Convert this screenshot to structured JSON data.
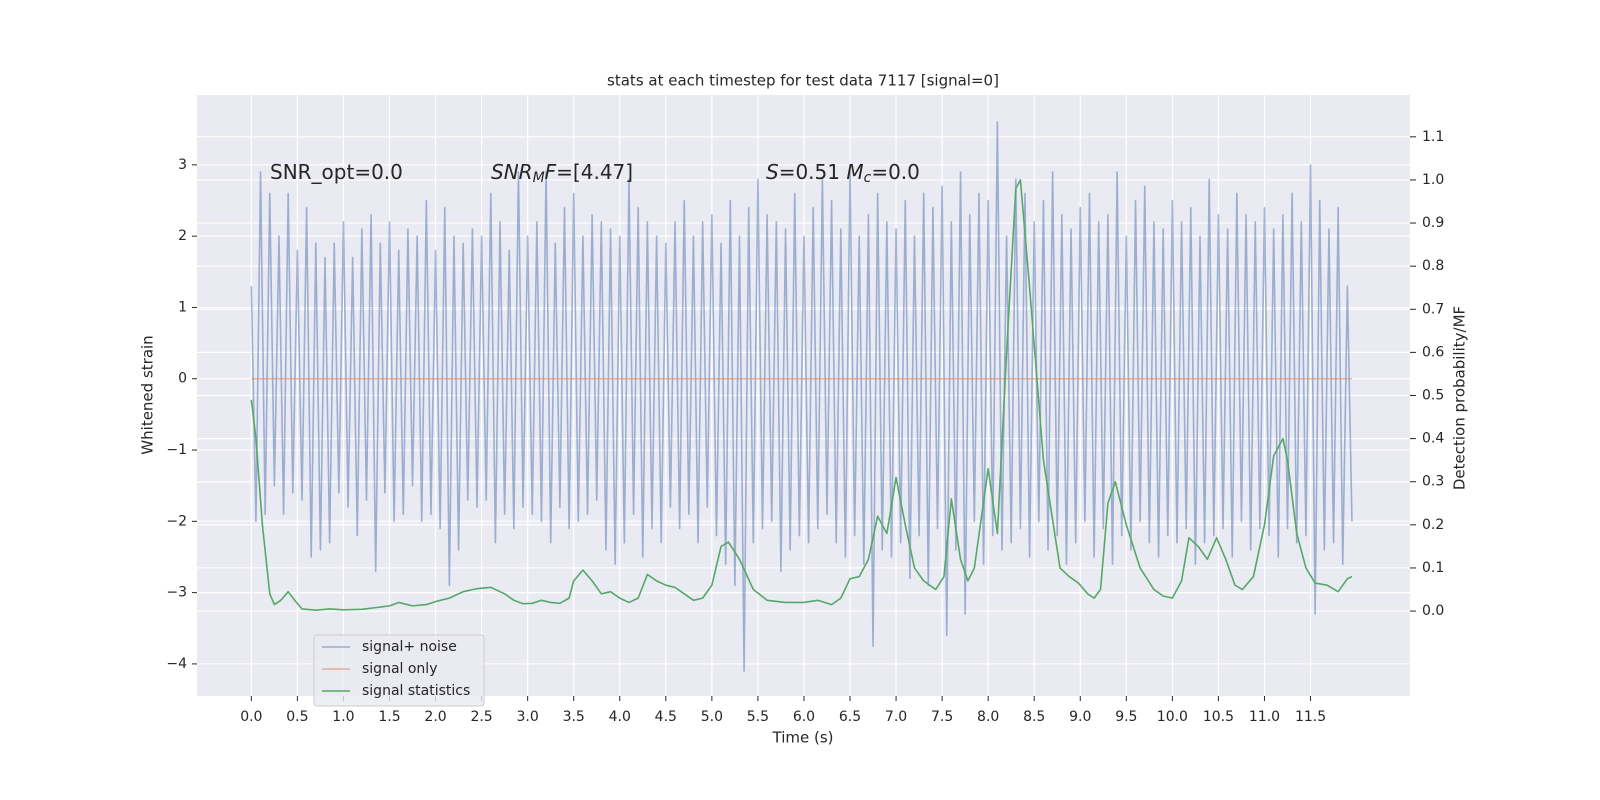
{
  "chart_data": {
    "type": "line",
    "title": "stats at each timestep for test data 7117 [signal=0]",
    "x_label": "Time (s)",
    "y_label": "Whitened strain",
    "y2_label": "Detection probability/MF",
    "annotations": [
      [
        {
          "text": "SNR_opt=0.0"
        }
      ],
      [
        {
          "text": "SNR",
          "italic": true
        },
        {
          "text": "M",
          "italic": true,
          "sub": true
        },
        {
          "text": "F",
          "italic": true
        },
        {
          "text": "=[4.47]"
        }
      ],
      [
        {
          "text": "S",
          "italic": true
        },
        {
          "text": "=0.51   "
        },
        {
          "text": "M",
          "italic": true
        },
        {
          "text": "c",
          "italic": true,
          "sub": true
        },
        {
          "text": "=0.0"
        }
      ]
    ],
    "xlim": [
      -0.59,
      12.58
    ],
    "xticks": [
      {
        "value": 0,
        "label": "0.0"
      },
      0.5,
      {
        "value": 1,
        "label": "1.0"
      },
      1.5,
      {
        "value": 2,
        "label": "2.0"
      },
      2.5,
      {
        "value": 3,
        "label": "3.0"
      },
      3.5,
      {
        "value": 4,
        "label": "4.0"
      },
      4.5,
      {
        "value": 5,
        "label": "5.0"
      },
      5.5,
      {
        "value": 6,
        "label": "6.0"
      },
      6.5,
      {
        "value": 7,
        "label": "7.0"
      },
      7.5,
      {
        "value": 8,
        "label": "8.0"
      },
      8.5,
      {
        "value": 9,
        "label": "9.0"
      },
      9.5,
      {
        "value": 10,
        "label": "10.0"
      },
      10.5,
      {
        "value": 11,
        "label": "11.0"
      },
      11.5
    ],
    "ylim": [
      -4.45,
      3.98
    ],
    "yticks": [
      {
        "value": -4,
        "label": "−4"
      },
      {
        "value": -3,
        "label": "−3"
      },
      {
        "value": -2,
        "label": "−2"
      },
      {
        "value": -1,
        "label": "−1"
      },
      0,
      1,
      2,
      3
    ],
    "y2lim": [
      -0.197,
      1.197
    ],
    "y2ticks": [
      {
        "value": 0,
        "label": "0.0"
      },
      0.1,
      0.2,
      0.3,
      0.4,
      0.5,
      0.6,
      0.7,
      0.8,
      0.9,
      {
        "value": 1,
        "label": "1.0"
      },
      1.1
    ],
    "grid": true,
    "legend": "lower left",
    "series": [
      {
        "name": "signal+ noise",
        "color": "#4c72b0",
        "alpha": 0.5,
        "axis": "y",
        "x": [
          0,
          0.05,
          0.1,
          0.15,
          0.2,
          0.25,
          0.3,
          0.35,
          0.4,
          0.45,
          0.5,
          0.55,
          0.6,
          0.65,
          0.7,
          0.75,
          0.8,
          0.85,
          0.9,
          0.95,
          1,
          1.05,
          1.1,
          1.15,
          1.2,
          1.25,
          1.3,
          1.35,
          1.4,
          1.45,
          1.5,
          1.55,
          1.6,
          1.65,
          1.7,
          1.75,
          1.8,
          1.85,
          1.9,
          1.95,
          2,
          2.05,
          2.1,
          2.15,
          2.2,
          2.25,
          2.3,
          2.35,
          2.4,
          2.45,
          2.5,
          2.55,
          2.6,
          2.65,
          2.7,
          2.75,
          2.8,
          2.85,
          2.9,
          2.95,
          3,
          3.05,
          3.1,
          3.15,
          3.2,
          3.25,
          3.3,
          3.35,
          3.4,
          3.45,
          3.5,
          3.55,
          3.6,
          3.65,
          3.7,
          3.75,
          3.8,
          3.85,
          3.9,
          3.95,
          4,
          4.05,
          4.1,
          4.15,
          4.2,
          4.25,
          4.3,
          4.35,
          4.4,
          4.45,
          4.5,
          4.55,
          4.6,
          4.65,
          4.7,
          4.75,
          4.8,
          4.85,
          4.9,
          4.95,
          5,
          5.05,
          5.1,
          5.15,
          5.2,
          5.25,
          5.3,
          5.35,
          5.4,
          5.45,
          5.5,
          5.55,
          5.6,
          5.65,
          5.7,
          5.75,
          5.8,
          5.85,
          5.9,
          5.95,
          6,
          6.05,
          6.1,
          6.15,
          6.2,
          6.25,
          6.3,
          6.35,
          6.4,
          6.45,
          6.5,
          6.55,
          6.6,
          6.65,
          6.7,
          6.75,
          6.8,
          6.85,
          6.9,
          6.95,
          7,
          7.05,
          7.1,
          7.15,
          7.2,
          7.25,
          7.3,
          7.35,
          7.4,
          7.45,
          7.5,
          7.55,
          7.6,
          7.65,
          7.7,
          7.75,
          7.8,
          7.85,
          7.9,
          7.95,
          8,
          8.05,
          8.1,
          8.15,
          8.2,
          8.25,
          8.3,
          8.35,
          8.4,
          8.45,
          8.5,
          8.55,
          8.6,
          8.65,
          8.7,
          8.75,
          8.8,
          8.85,
          8.9,
          8.95,
          9,
          9.05,
          9.1,
          9.15,
          9.2,
          9.25,
          9.3,
          9.35,
          9.4,
          9.45,
          9.5,
          9.55,
          9.6,
          9.65,
          9.7,
          9.75,
          9.8,
          9.85,
          9.9,
          9.95,
          10,
          10.05,
          10.1,
          10.15,
          10.2,
          10.25,
          10.3,
          10.35,
          10.4,
          10.45,
          10.5,
          10.55,
          10.6,
          10.65,
          10.7,
          10.75,
          10.8,
          10.85,
          10.9,
          10.95,
          11,
          11.05,
          11.1,
          11.15,
          11.2,
          11.25,
          11.3,
          11.35,
          11.4,
          11.45,
          11.5,
          11.55,
          11.6,
          11.65,
          11.7,
          11.75,
          11.8,
          11.85,
          11.9,
          11.95
        ],
        "values": [
          1.3,
          -2.0,
          2.9,
          -1.9,
          2.6,
          -1.5,
          2.0,
          -1.9,
          2.6,
          -1.6,
          1.8,
          -1.7,
          2.4,
          -2.5,
          1.9,
          -2.4,
          1.7,
          -2.3,
          1.9,
          -1.6,
          2.2,
          -1.8,
          1.7,
          -2.2,
          2.1,
          -1.7,
          2.3,
          -2.7,
          1.9,
          -1.6,
          2.2,
          -2.0,
          1.8,
          -1.9,
          2.1,
          -1.5,
          2.0,
          -2.0,
          2.5,
          -1.9,
          1.8,
          -2.1,
          2.4,
          -2.9,
          2.0,
          -2.4,
          1.9,
          -1.7,
          2.1,
          -1.8,
          2.0,
          -1.7,
          2.6,
          -2.3,
          2.2,
          -1.9,
          1.8,
          -2.1,
          2.9,
          -1.8,
          2.0,
          -1.9,
          2.2,
          -2.0,
          2.9,
          -2.3,
          1.9,
          -1.8,
          2.4,
          -2.1,
          2.6,
          -2.0,
          2.0,
          -1.9,
          2.3,
          -1.7,
          2.2,
          -2.4,
          2.1,
          -2.6,
          2.0,
          -2.3,
          2.8,
          -1.9,
          2.4,
          -2.5,
          2.2,
          -2.1,
          2.0,
          -2.3,
          1.9,
          -1.8,
          2.2,
          -2.1,
          2.5,
          -1.9,
          2.0,
          -2.3,
          2.2,
          -1.8,
          2.3,
          -2.2,
          1.9,
          -2.6,
          2.5,
          -2.9,
          2.0,
          -4.1,
          2.4,
          -2.3,
          2.8,
          -2.1,
          2.3,
          -2.0,
          2.2,
          -2.7,
          2.1,
          -2.4,
          2.6,
          -2.2,
          2.0,
          -2.3,
          2.4,
          -2.1,
          2.8,
          -1.9,
          2.5,
          -2.3,
          2.1,
          -2.5,
          2.9,
          -2.2,
          2.0,
          -2.6,
          2.3,
          -3.75,
          2.6,
          -2.4,
          2.2,
          -2.5,
          2.1,
          -2.3,
          2.5,
          -2.8,
          2.0,
          -2.2,
          2.6,
          -2.9,
          2.4,
          -2.1,
          2.7,
          -3.6,
          2.2,
          -2.4,
          2.9,
          -3.3,
          2.3,
          -2.0,
          2.6,
          -2.6,
          2.5,
          -2.2,
          3.6,
          -2.4,
          2.0,
          -2.3,
          2.8,
          -2.1,
          2.6,
          -2.5,
          2.2,
          -2.0,
          2.5,
          -2.4,
          2.9,
          -2.2,
          2.3,
          -2.6,
          2.1,
          -2.3,
          2.4,
          -2.0,
          2.6,
          -2.5,
          2.2,
          -2.1,
          2.3,
          -2.6,
          2.9,
          -2.2,
          2.0,
          -2.4,
          2.5,
          -2.0,
          2.7,
          -2.3,
          2.2,
          -2.5,
          2.1,
          -2.2,
          2.5,
          -2.3,
          2.2,
          -2.1,
          2.4,
          -2.6,
          2.0,
          -2.3,
          2.8,
          -2.2,
          2.3,
          -2.1,
          2.1,
          -2.5,
          2.6,
          -2.0,
          2.3,
          -2.4,
          2.2,
          -2.1,
          2.4,
          -2.2,
          2.1,
          -2.5,
          2.3,
          -2.1,
          2.6,
          -2.3,
          2.2,
          -2.2,
          3.0,
          -3.3,
          2.5,
          -2.4,
          2.1,
          -2.3,
          2.4,
          -2.6,
          1.3,
          -2.0
        ]
      },
      {
        "name": "signal only",
        "color": "#dd8452",
        "alpha": 0.6,
        "axis": "y",
        "x": [
          0,
          11.95
        ],
        "values": [
          0,
          0
        ]
      },
      {
        "name": "signal statistics",
        "color": "#55a868",
        "alpha": 1,
        "axis": "y2",
        "x": [
          0,
          0.05,
          0.12,
          0.2,
          0.25,
          0.32,
          0.4,
          0.47,
          0.55,
          0.7,
          0.85,
          1.0,
          1.2,
          1.35,
          1.5,
          1.6,
          1.75,
          1.9,
          2.0,
          2.15,
          2.3,
          2.45,
          2.6,
          2.75,
          2.85,
          2.95,
          3.05,
          3.15,
          3.25,
          3.35,
          3.45,
          3.5,
          3.6,
          3.7,
          3.8,
          3.9,
          4.0,
          4.1,
          4.2,
          4.3,
          4.4,
          4.5,
          4.6,
          4.7,
          4.8,
          4.9,
          5.0,
          5.1,
          5.18,
          5.3,
          5.45,
          5.6,
          5.8,
          6.0,
          6.15,
          6.3,
          6.4,
          6.5,
          6.6,
          6.7,
          6.8,
          6.9,
          7.0,
          7.1,
          7.2,
          7.3,
          7.43,
          7.52,
          7.6,
          7.7,
          7.78,
          7.85,
          8.0,
          8.1,
          8.2,
          8.3,
          8.35,
          8.45,
          8.6,
          8.78,
          8.88,
          8.98,
          9.08,
          9.15,
          9.22,
          9.3,
          9.38,
          9.5,
          9.65,
          9.8,
          9.9,
          10.0,
          10.1,
          10.18,
          10.28,
          10.38,
          10.48,
          10.58,
          10.68,
          10.76,
          10.88,
          11.0,
          11.1,
          11.2,
          11.25,
          11.35,
          11.45,
          11.55,
          11.68,
          11.8,
          11.9,
          11.95
        ],
        "values": [
          0.49,
          0.4,
          0.2,
          0.04,
          0.015,
          0.025,
          0.045,
          0.025,
          0.005,
          0.002,
          0.005,
          0.003,
          0.004,
          0.008,
          0.012,
          0.02,
          0.012,
          0.015,
          0.022,
          0.03,
          0.045,
          0.052,
          0.055,
          0.04,
          0.025,
          0.017,
          0.018,
          0.025,
          0.02,
          0.018,
          0.03,
          0.07,
          0.095,
          0.07,
          0.04,
          0.045,
          0.03,
          0.02,
          0.03,
          0.085,
          0.07,
          0.06,
          0.055,
          0.04,
          0.025,
          0.03,
          0.06,
          0.15,
          0.16,
          0.12,
          0.05,
          0.025,
          0.02,
          0.02,
          0.025,
          0.015,
          0.03,
          0.075,
          0.08,
          0.12,
          0.22,
          0.18,
          0.31,
          0.2,
          0.1,
          0.07,
          0.05,
          0.08,
          0.26,
          0.12,
          0.07,
          0.1,
          0.33,
          0.18,
          0.6,
          0.98,
          1.0,
          0.75,
          0.35,
          0.1,
          0.08,
          0.065,
          0.04,
          0.03,
          0.05,
          0.25,
          0.3,
          0.2,
          0.1,
          0.05,
          0.035,
          0.03,
          0.07,
          0.17,
          0.15,
          0.12,
          0.17,
          0.12,
          0.06,
          0.05,
          0.08,
          0.2,
          0.36,
          0.4,
          0.35,
          0.18,
          0.1,
          0.065,
          0.06,
          0.045,
          0.075,
          0.08
        ]
      }
    ]
  }
}
